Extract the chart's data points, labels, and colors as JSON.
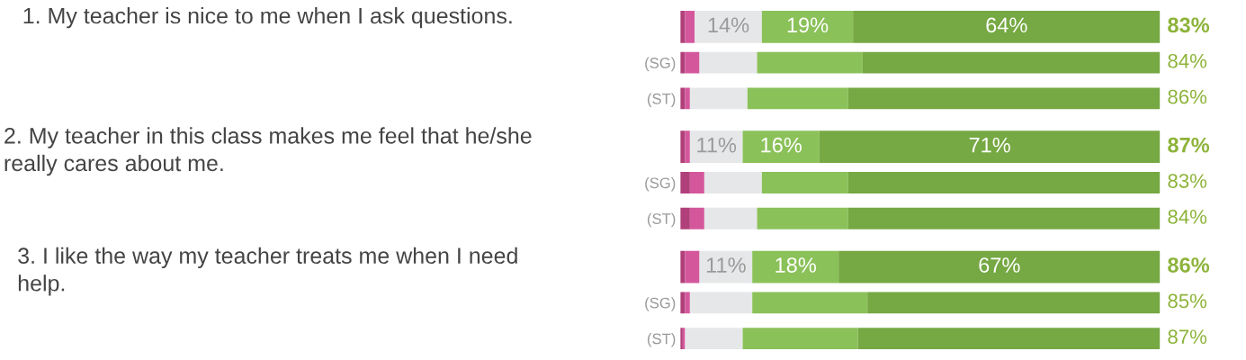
{
  "chart_data": [
    {
      "type": "bar",
      "title": "1. My teacher is nice to me when I ask questions.",
      "orientation": "horizontal",
      "stacked": true,
      "xlim": [
        0,
        100
      ],
      "tick_labels": "y",
      "categories": [
        null,
        "(SG)",
        "(ST)"
      ],
      "series": [
        {
          "color": "#b0407a",
          "values": [
            1,
            1,
            1
          ]
        },
        {
          "color": "#d4579c",
          "values": [
            2,
            3,
            1
          ]
        },
        {
          "color": "#e6e7e9",
          "values": [
            14,
            12,
            12
          ],
          "value_labels": [
            "14%",
            null,
            null
          ]
        },
        {
          "color": "#8bc159",
          "values": [
            19,
            22,
            21
          ],
          "value_labels": [
            "19%",
            null,
            null
          ]
        },
        {
          "color": "#76a843",
          "values": [
            64,
            62,
            65
          ],
          "value_labels": [
            "64%",
            null,
            null
          ]
        }
      ],
      "annotations": [
        "83%",
        "84%",
        "86%"
      ]
    },
    {
      "type": "bar",
      "title": "2. My teacher in this class makes me feel that he/she really cares about me.",
      "orientation": "horizontal",
      "stacked": true,
      "xlim": [
        0,
        100
      ],
      "tick_labels": "y",
      "categories": [
        null,
        "(SG)",
        "(ST)"
      ],
      "series": [
        {
          "color": "#b0407a",
          "values": [
            1,
            2,
            2
          ]
        },
        {
          "color": "#d4579c",
          "values": [
            1,
            3,
            3
          ]
        },
        {
          "color": "#e6e7e9",
          "values": [
            11,
            12,
            11
          ],
          "value_labels": [
            "11%",
            null,
            null
          ]
        },
        {
          "color": "#8bc159",
          "values": [
            16,
            18,
            19
          ],
          "value_labels": [
            "16%",
            null,
            null
          ]
        },
        {
          "color": "#76a843",
          "values": [
            71,
            65,
            65
          ],
          "value_labels": [
            "71%",
            null,
            null
          ]
        }
      ],
      "annotations": [
        "87%",
        "83%",
        "84%"
      ]
    },
    {
      "type": "bar",
      "title": "3. I like the way my teacher treats me when I need help.",
      "orientation": "horizontal",
      "stacked": true,
      "xlim": [
        0,
        100
      ],
      "tick_labels": "y",
      "categories": [
        null,
        "(SG)",
        "(ST)"
      ],
      "series": [
        {
          "color": "#b0407a",
          "values": [
            1,
            1,
            0.5
          ]
        },
        {
          "color": "#d4579c",
          "values": [
            3,
            1,
            0.5
          ]
        },
        {
          "color": "#e6e7e9",
          "values": [
            11,
            13,
            12
          ],
          "value_labels": [
            "11%",
            null,
            null
          ]
        },
        {
          "color": "#8bc159",
          "values": [
            18,
            24,
            24
          ],
          "value_labels": [
            "18%",
            null,
            null
          ]
        },
        {
          "color": "#76a843",
          "values": [
            67,
            61,
            63
          ],
          "value_labels": [
            "67%",
            null,
            null
          ]
        }
      ],
      "annotations": [
        "86%",
        "85%",
        "87%"
      ]
    }
  ]
}
